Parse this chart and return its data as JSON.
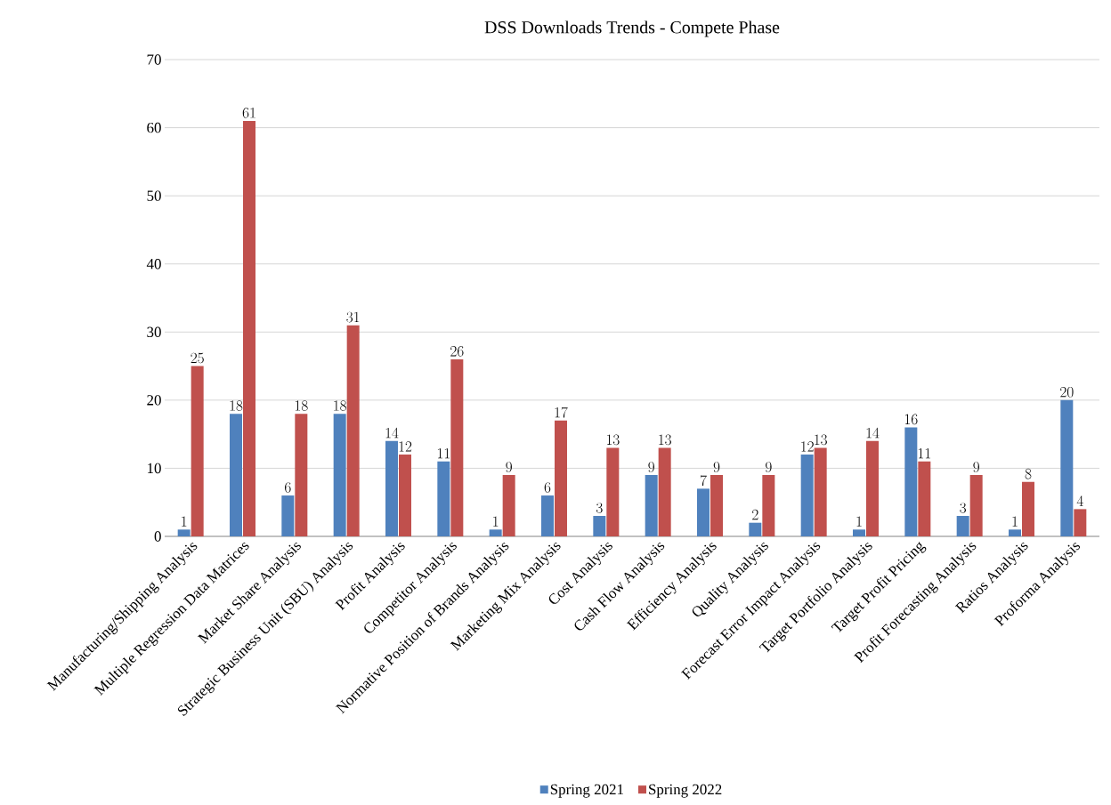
{
  "chart_data": {
    "type": "bar",
    "title": "DSS Downloads Trends - Compete Phase",
    "categories": [
      "Manufacturing/Shipping Analysis",
      "Multiple Regression Data Matrices",
      "Market Share Analysis",
      "Strategic Business Unit (SBU) Analysis",
      "Profit Analysis",
      "Competitor Analysis",
      "Normative Position of Brands Analysis",
      "Marketing Mix Analysis",
      "Cost Analysis",
      "Cash Flow Analysis",
      "Efficiency Analysis",
      "Quality Analysis",
      "Forecast Error Impact Analysis",
      "Target Portfolio Analysis",
      "Target Profit Pricing",
      "Profit Forecasting Analysis",
      "Ratios Analysis",
      "Proforma Analysis"
    ],
    "series": [
      {
        "name": "Spring 2021",
        "color": "#4f81bd",
        "values": [
          1,
          18,
          6,
          18,
          14,
          11,
          1,
          6,
          3,
          9,
          7,
          2,
          12,
          1,
          16,
          3,
          1,
          20
        ]
      },
      {
        "name": "Spring 2022",
        "color": "#c0504d",
        "values": [
          25,
          61,
          18,
          31,
          12,
          26,
          9,
          17,
          13,
          13,
          9,
          9,
          13,
          14,
          11,
          9,
          8,
          4
        ]
      }
    ],
    "ylim": [
      0,
      70
    ],
    "yticks": [
      0,
      10,
      20,
      30,
      40,
      50,
      60,
      70
    ],
    "grid": "y",
    "legend": "bottom",
    "data_labels": true
  }
}
